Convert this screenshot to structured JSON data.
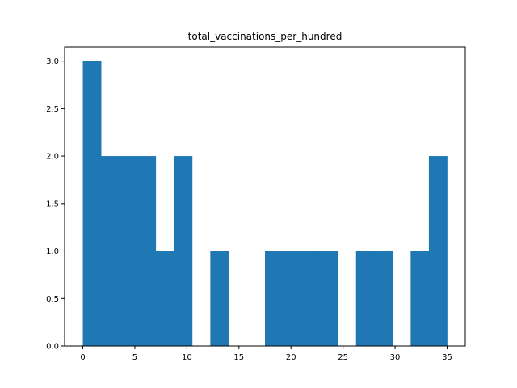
{
  "chart_data": {
    "type": "bar",
    "title": "total_vaccinations_per_hundred",
    "xlabel": "",
    "ylabel": "",
    "bin_edges": [
      0,
      1.75,
      3.5,
      5.25,
      7.0,
      8.75,
      10.5,
      12.25,
      14.0,
      15.75,
      17.5,
      19.25,
      21.0,
      22.75,
      24.5,
      26.25,
      28.0,
      29.75,
      31.5,
      33.25,
      35.0
    ],
    "counts": [
      3,
      2,
      2,
      2,
      1,
      2,
      0,
      1,
      0,
      0,
      1,
      1,
      1,
      1,
      0,
      1,
      1,
      0,
      1,
      2
    ],
    "xlim": [
      -1.75,
      36.75
    ],
    "ylim": [
      0,
      3.15
    ],
    "xticks": [
      0,
      5,
      10,
      15,
      20,
      25,
      30,
      35
    ],
    "xtick_labels": [
      "0",
      "5",
      "10",
      "15",
      "20",
      "25",
      "30",
      "35"
    ],
    "yticks": [
      0.0,
      0.5,
      1.0,
      1.5,
      2.0,
      2.5,
      3.0
    ],
    "ytick_labels": [
      "0.0",
      "0.5",
      "1.0",
      "1.5",
      "2.0",
      "2.5",
      "3.0"
    ],
    "bar_color": "#1f77b4",
    "grid": false
  }
}
